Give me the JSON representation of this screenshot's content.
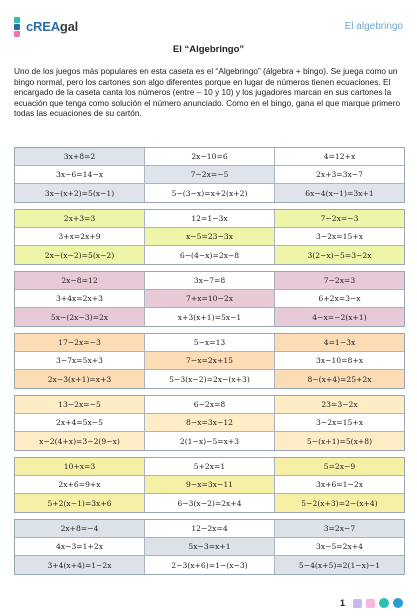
{
  "brand": {
    "logo_text": "cREAgal",
    "right_text": "El algebringo"
  },
  "colors": {
    "accent": "#2b6ea8",
    "teal": "#2bbfb0",
    "pink": "#f070b8",
    "purple": "#8a5bd6"
  },
  "title": "El “Algebringo”",
  "intro": "Uno de los juegos más populares en esta caseta es el “Algebringo” (álgebra + bingo). Se juega como un bingo normal, pero los cartones son algo diferentes porque en lugar de números tienen ecuaciones. El encargado de la caseta canta los números (entre – 10 y 10) y los jugadores marcan en sus cartones la ecuación que tenga como solución el número anunciado. Como en el bingo, gana el que marque primero todas las ecuaciones de su cartón.",
  "cards": [
    {
      "rows": [
        [
          "3x+8=2",
          "2x−10=6",
          "4=12+x"
        ],
        [
          "3x−6=14−x",
          "7−2x=−5",
          "2x+3=3x−7"
        ],
        [
          "3x−(x+2)=5(x−1)",
          "5−(3−x)=x+2(x+2)",
          "6x−4(x−1)=3x+1"
        ]
      ]
    },
    {
      "rows": [
        [
          "2x+3=3",
          "12=1−3x",
          "7−2x=−3"
        ],
        [
          "3+x=2x+9",
          "x−5=23−3x",
          "3−2x=15+x"
        ],
        [
          "2x−(x−2)=5(x−2)",
          "6−(4−x)=2x−8",
          "3(2−x)−5=3−2x"
        ]
      ]
    },
    {
      "rows": [
        [
          "2x−8=12",
          "3x−7=8",
          "7−2x=3"
        ],
        [
          "3+4x=2x+3",
          "7+x=10−2x",
          "6+2x=3−x"
        ],
        [
          "5x−(2x−3)=2x",
          "x+3(x+1)=5x−1",
          "4−x=−2(x+1)"
        ]
      ]
    },
    {
      "rows": [
        [
          "17−2x=−3",
          "5−x=13",
          "4=1−3x"
        ],
        [
          "3−7x=5x+3",
          "7−x=2x+15",
          "3x−10=8+x"
        ],
        [
          "2x−3(x+1)=x+3",
          "5−3(x−2)=2x−(x+3)",
          "8−(x+4)=25+2x"
        ]
      ]
    },
    {
      "rows": [
        [
          "13−2x=−5",
          "6−2x=8",
          "23=3−2x"
        ],
        [
          "2x+4=5x−5",
          "8−x=3x−12",
          "3−2x=15+x"
        ],
        [
          "x−2(4+x)=3−2(9−x)",
          "2(1−x)−5=x+3",
          "5−(x+1)=5(x+8)"
        ]
      ]
    },
    {
      "rows": [
        [
          "10+x=3",
          "5+2x=1",
          "5=2x−9"
        ],
        [
          "2x+6=9+x",
          "9−x=3x−11",
          "3x+6=1−2x"
        ],
        [
          "5+2(x−1)=3x+6",
          "6−3(x−2)=2x+4",
          "5−2(x+3)=2−(x+4)"
        ]
      ]
    },
    {
      "rows": [
        [
          "2x+8=−4",
          "12−2x=4",
          "3=2x−7"
        ],
        [
          "4x−3=1+2x",
          "5x−3=x+1",
          "3x−5=2x+4"
        ],
        [
          "3+4(x+4)=1−2x",
          "2−3(x+6)=1−(x−3)",
          "5−4(x+5)=2(1−x)−1"
        ]
      ]
    }
  ],
  "page_number": "1"
}
